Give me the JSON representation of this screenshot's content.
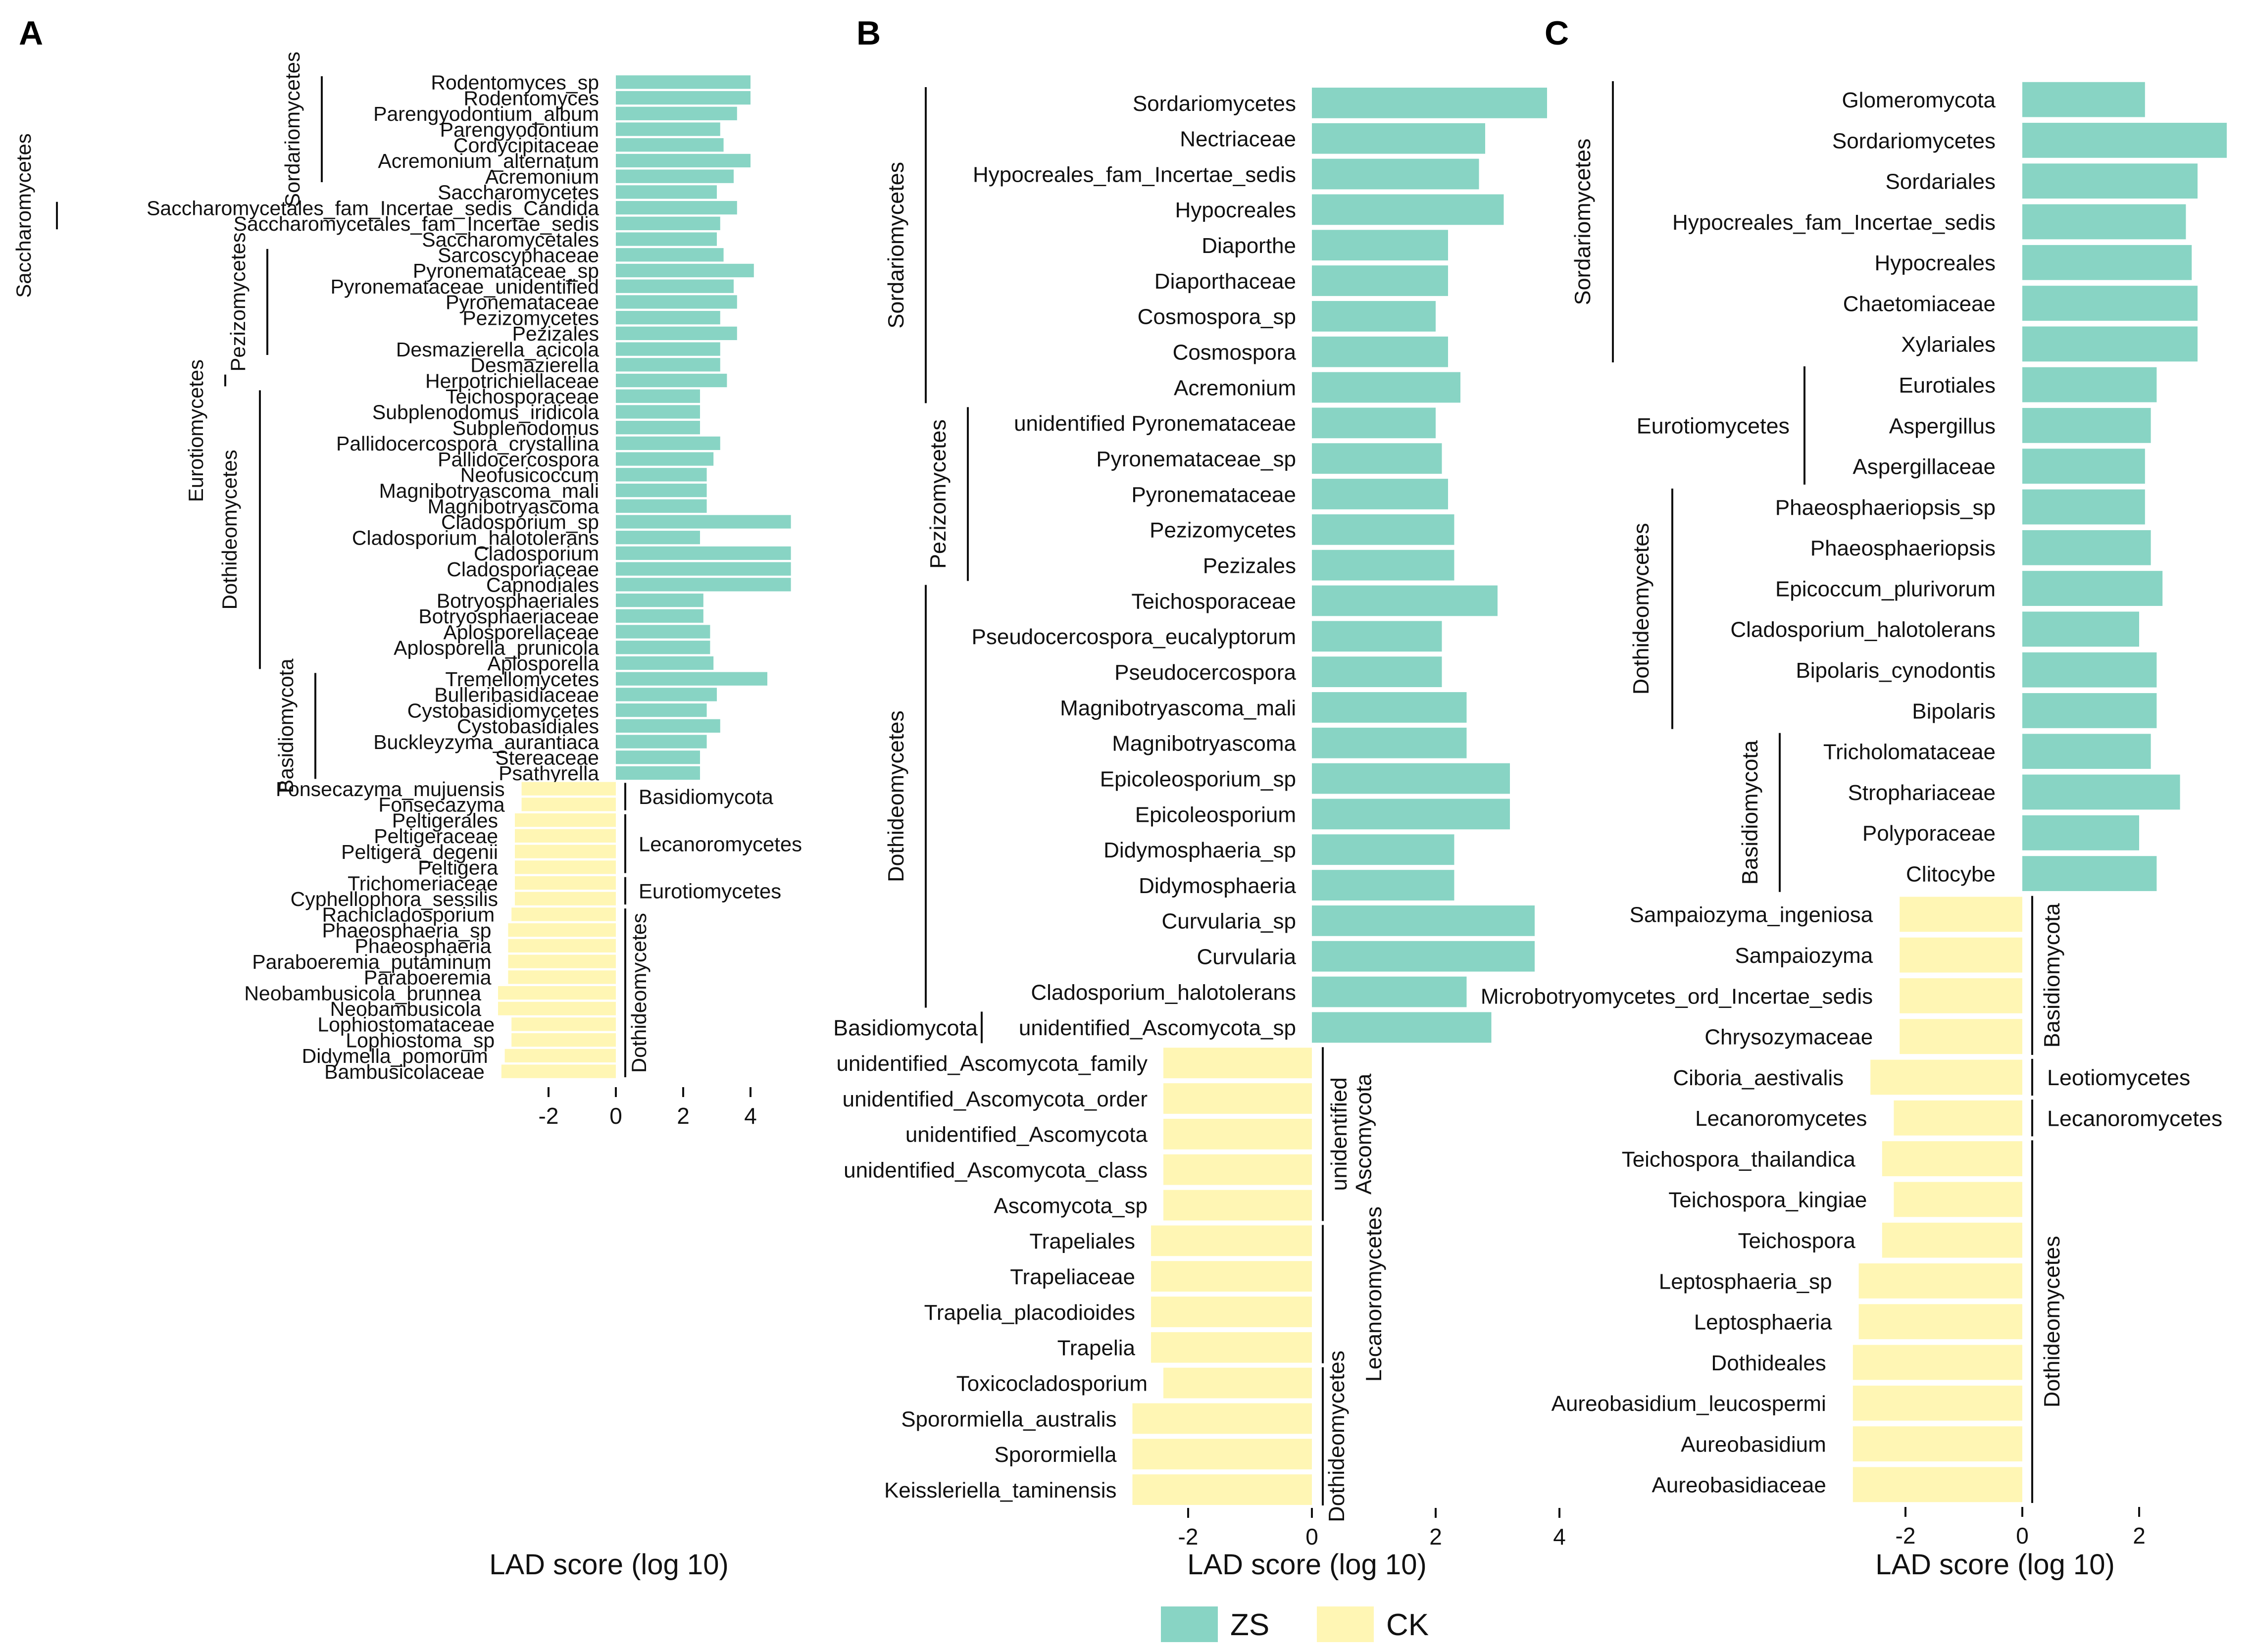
{
  "colors": {
    "ZS": "#88d4c4",
    "CK": "#fff6b4",
    "line": "#111111",
    "text": "#111111"
  },
  "legend": [
    {
      "name": "ZS",
      "color": "#88d4c4"
    },
    {
      "name": "CK",
      "color": "#fff6b4"
    }
  ],
  "chart_data": [
    {
      "panel": "A",
      "type": "bar",
      "orientation": "horizontal",
      "xlabel": "LAD score (log 10)",
      "xticks": [
        -2,
        0,
        2,
        4
      ],
      "xlim": [
        -4,
        6
      ],
      "bars": [
        {
          "label": "Rodentomyces_sp",
          "value": 4.0,
          "group": "ZS"
        },
        {
          "label": "Rodentomyces",
          "value": 4.0,
          "group": "ZS"
        },
        {
          "label": "Parengyodontium_album",
          "value": 3.6,
          "group": "ZS"
        },
        {
          "label": "Parengyodontium",
          "value": 3.1,
          "group": "ZS"
        },
        {
          "label": "Cordycipitaceae",
          "value": 3.2,
          "group": "ZS"
        },
        {
          "label": "Acremonium_alternatum",
          "value": 4.0,
          "group": "ZS"
        },
        {
          "label": "Acremonium",
          "value": 3.5,
          "group": "ZS"
        },
        {
          "label": "Saccharomycetes",
          "value": 3.0,
          "group": "ZS"
        },
        {
          "label": "Saccharomycetales_fam_Incertae_sedis_Candida",
          "value": 3.6,
          "group": "ZS"
        },
        {
          "label": "Saccharomycetales_fam_Incertae_sedis",
          "value": 3.1,
          "group": "ZS"
        },
        {
          "label": "Saccharomycetales",
          "value": 3.0,
          "group": "ZS"
        },
        {
          "label": "Sarcoscyphaceae",
          "value": 3.2,
          "group": "ZS"
        },
        {
          "label": "Pyronemataceae_sp",
          "value": 4.1,
          "group": "ZS"
        },
        {
          "label": "Pyronemataceae_unidentified",
          "value": 3.5,
          "group": "ZS"
        },
        {
          "label": "Pyronemataceae",
          "value": 3.6,
          "group": "ZS"
        },
        {
          "label": "Pezizomycetes",
          "value": 3.1,
          "group": "ZS"
        },
        {
          "label": "Pezizales",
          "value": 3.6,
          "group": "ZS"
        },
        {
          "label": "Desmazierella_acicola",
          "value": 3.1,
          "group": "ZS"
        },
        {
          "label": "Desmazierella",
          "value": 3.1,
          "group": "ZS"
        },
        {
          "label": "Herpotrichiellaceae",
          "value": 3.3,
          "group": "ZS"
        },
        {
          "label": "Teichosporaceae",
          "value": 2.5,
          "group": "ZS"
        },
        {
          "label": "Subplenodomus_iridicola",
          "value": 2.5,
          "group": "ZS"
        },
        {
          "label": "Subplenodomus",
          "value": 2.5,
          "group": "ZS"
        },
        {
          "label": "Pallidocercospora_crystallina",
          "value": 3.1,
          "group": "ZS"
        },
        {
          "label": "Pallidocercospora",
          "value": 2.9,
          "group": "ZS"
        },
        {
          "label": "Neofusicoccum",
          "value": 2.7,
          "group": "ZS"
        },
        {
          "label": "Magnibotryascoma_mali",
          "value": 2.7,
          "group": "ZS"
        },
        {
          "label": "Magnibotryascoma",
          "value": 2.7,
          "group": "ZS"
        },
        {
          "label": "Cladosporium_sp",
          "value": 5.2,
          "group": "ZS"
        },
        {
          "label": "Cladosporium_halotolerans",
          "value": 2.5,
          "group": "ZS"
        },
        {
          "label": "Cladosporium",
          "value": 5.2,
          "group": "ZS"
        },
        {
          "label": "Cladosporiaceae",
          "value": 5.2,
          "group": "ZS"
        },
        {
          "label": "Capnodiales",
          "value": 5.2,
          "group": "ZS"
        },
        {
          "label": "Botryosphaeriales",
          "value": 2.6,
          "group": "ZS"
        },
        {
          "label": "Botryosphaeriaceae",
          "value": 2.6,
          "group": "ZS"
        },
        {
          "label": "Aplosporellaceae",
          "value": 2.8,
          "group": "ZS"
        },
        {
          "label": "Aplosporella_prunicola",
          "value": 2.8,
          "group": "ZS"
        },
        {
          "label": "Aplosporella",
          "value": 2.9,
          "group": "ZS"
        },
        {
          "label": "Tremellomycetes",
          "value": 4.5,
          "group": "ZS"
        },
        {
          "label": "Bulleribasidiaceae",
          "value": 3.0,
          "group": "ZS"
        },
        {
          "label": "Cystobasidiomycetes",
          "value": 2.7,
          "group": "ZS"
        },
        {
          "label": "Cystobasidiales",
          "value": 3.1,
          "group": "ZS"
        },
        {
          "label": "Buckleyzyma_aurantiaca",
          "value": 2.7,
          "group": "ZS"
        },
        {
          "label": "Stereaceae",
          "value": 2.5,
          "group": "ZS"
        },
        {
          "label": "Psathyrella",
          "value": 2.5,
          "group": "ZS"
        },
        {
          "label": "Fonsecazyma_mujuensis",
          "value": -2.8,
          "group": "CK"
        },
        {
          "label": "Fonsecazyma",
          "value": -2.8,
          "group": "CK"
        },
        {
          "label": "Peltigerales",
          "value": -3.0,
          "group": "CK"
        },
        {
          "label": "Peltigeraceae",
          "value": -3.0,
          "group": "CK"
        },
        {
          "label": "Peltigera_degenii",
          "value": -3.0,
          "group": "CK"
        },
        {
          "label": "Peltigera",
          "value": -3.0,
          "group": "CK"
        },
        {
          "label": "Trichomeriaceae",
          "value": -3.0,
          "group": "CK"
        },
        {
          "label": "Cyphellophora_sessilis",
          "value": -3.0,
          "group": "CK"
        },
        {
          "label": "Rachicladosporium",
          "value": -3.1,
          "group": "CK"
        },
        {
          "label": "Phaeosphaeria_sp",
          "value": -3.2,
          "group": "CK"
        },
        {
          "label": "Phaeosphaeria",
          "value": -3.2,
          "group": "CK"
        },
        {
          "label": "Paraboeremia_putaminum",
          "value": -3.2,
          "group": "CK"
        },
        {
          "label": "Paraboeremia",
          "value": -3.2,
          "group": "CK"
        },
        {
          "label": "Neobambusicola_brunnea",
          "value": -3.5,
          "group": "CK"
        },
        {
          "label": "Neobambusicola",
          "value": -3.5,
          "group": "CK"
        },
        {
          "label": "Lophiostomataceae",
          "value": -3.1,
          "group": "CK"
        },
        {
          "label": "Lophiostoma_sp",
          "value": -3.1,
          "group": "CK"
        },
        {
          "label": "Didymella_pomorum",
          "value": -3.3,
          "group": "CK"
        },
        {
          "label": "Bambusicolaceae",
          "value": -3.4,
          "group": "CK"
        }
      ],
      "group_annotations": [
        {
          "label": "Sordariomycetes",
          "from": 0,
          "to": 6
        },
        {
          "label": "Saccharomycetes",
          "from": 8,
          "to": 9
        },
        {
          "label": "Pezizomycetes",
          "from": 11,
          "to": 17
        },
        {
          "label": "Eurotiomycetes",
          "from": 19,
          "to": 19
        },
        {
          "label": "Dothideomycetes",
          "from": 20,
          "to": 37
        },
        {
          "label": "Basidiomycota",
          "from": 38,
          "to": 44
        },
        {
          "label": "Basidiomycota",
          "from": 45,
          "to": 46
        },
        {
          "label": "Lecanoromycetes",
          "from": 47,
          "to": 50
        },
        {
          "label": "Eurotiomycetes",
          "from": 51,
          "to": 52
        },
        {
          "label": "Dothideomycetes",
          "from": 53,
          "to": 63
        }
      ]
    },
    {
      "panel": "B",
      "type": "bar",
      "orientation": "horizontal",
      "xlabel": "LAD score (log 10)",
      "xticks": [
        -2,
        0,
        2,
        4
      ],
      "xlim": [
        -3.2,
        4.2
      ],
      "bars": [
        {
          "label": "Sordariomycetes",
          "value": 3.8,
          "group": "ZS"
        },
        {
          "label": "Nectriaceae",
          "value": 2.8,
          "group": "ZS"
        },
        {
          "label": "Hypocreales_fam_Incertae_sedis",
          "value": 2.7,
          "group": "ZS"
        },
        {
          "label": "Hypocreales",
          "value": 3.1,
          "group": "ZS"
        },
        {
          "label": "Diaporthe",
          "value": 2.2,
          "group": "ZS"
        },
        {
          "label": "Diaporthaceae",
          "value": 2.2,
          "group": "ZS"
        },
        {
          "label": "Cosmospora_sp",
          "value": 2.0,
          "group": "ZS"
        },
        {
          "label": "Cosmospora",
          "value": 2.2,
          "group": "ZS"
        },
        {
          "label": "Acremonium",
          "value": 2.4,
          "group": "ZS"
        },
        {
          "label": "unidentified Pyronemataceae",
          "value": 2.0,
          "group": "ZS"
        },
        {
          "label": "Pyronemataceae_sp",
          "value": 2.1,
          "group": "ZS"
        },
        {
          "label": "Pyronemataceae",
          "value": 2.2,
          "group": "ZS"
        },
        {
          "label": "Pezizomycetes",
          "value": 2.3,
          "group": "ZS"
        },
        {
          "label": "Pezizales",
          "value": 2.3,
          "group": "ZS"
        },
        {
          "label": "Teichosporaceae",
          "value": 3.0,
          "group": "ZS"
        },
        {
          "label": "Pseudocercospora_eucalyptorum",
          "value": 2.1,
          "group": "ZS"
        },
        {
          "label": "Pseudocercospora",
          "value": 2.1,
          "group": "ZS"
        },
        {
          "label": "Magnibotryascoma_mali",
          "value": 2.5,
          "group": "ZS"
        },
        {
          "label": "Magnibotryascoma",
          "value": 2.5,
          "group": "ZS"
        },
        {
          "label": "Epicoleosporium_sp",
          "value": 3.2,
          "group": "ZS"
        },
        {
          "label": "Epicoleosporium",
          "value": 3.2,
          "group": "ZS"
        },
        {
          "label": "Didymosphaeria_sp",
          "value": 2.3,
          "group": "ZS"
        },
        {
          "label": "Didymosphaeria",
          "value": 2.3,
          "group": "ZS"
        },
        {
          "label": "Curvularia_sp",
          "value": 3.6,
          "group": "ZS"
        },
        {
          "label": "Curvularia",
          "value": 3.6,
          "group": "ZS"
        },
        {
          "label": "Cladosporium_halotolerans",
          "value": 2.5,
          "group": "ZS"
        },
        {
          "label": "unidentified_Ascomycota_sp",
          "value": 2.9,
          "group": "ZS"
        },
        {
          "label": "unidentified_Ascomycota_family",
          "value": -2.4,
          "group": "CK"
        },
        {
          "label": "unidentified_Ascomycota_order",
          "value": -2.4,
          "group": "CK"
        },
        {
          "label": "unidentified_Ascomycota",
          "value": -2.4,
          "group": "CK"
        },
        {
          "label": "unidentified_Ascomycota_class",
          "value": -2.4,
          "group": "CK"
        },
        {
          "label": "Ascomycota_sp",
          "value": -2.4,
          "group": "CK"
        },
        {
          "label": "Trapeliales",
          "value": -2.6,
          "group": "CK"
        },
        {
          "label": "Trapeliaceae",
          "value": -2.6,
          "group": "CK"
        },
        {
          "label": "Trapelia_placodioides",
          "value": -2.6,
          "group": "CK"
        },
        {
          "label": "Trapelia",
          "value": -2.6,
          "group": "CK"
        },
        {
          "label": "Toxicocladosporium",
          "value": -2.4,
          "group": "CK"
        },
        {
          "label": "Sporormiella_australis",
          "value": -2.9,
          "group": "CK"
        },
        {
          "label": "Sporormiella",
          "value": -2.9,
          "group": "CK"
        },
        {
          "label": "Keissleriella_taminensis",
          "value": -2.9,
          "group": "CK"
        }
      ],
      "group_annotations": [
        {
          "label": "Sordariomycetes",
          "from": 0,
          "to": 8
        },
        {
          "label": "Pezizomycetes",
          "from": 9,
          "to": 13
        },
        {
          "label": "Dothideomycetes",
          "from": 14,
          "to": 25
        },
        {
          "label": "Basidiomycota",
          "from": 26,
          "to": 26
        },
        {
          "label": "unidentified Ascomycota",
          "from": 27,
          "to": 31
        },
        {
          "label": "Lecanoromycetes",
          "from": 32,
          "to": 35
        },
        {
          "label": "Dothideomycetes",
          "from": 36,
          "to": 39
        }
      ]
    },
    {
      "panel": "C",
      "type": "bar",
      "orientation": "horizontal",
      "xlabel": "LAD score (log 10)",
      "xticks": [
        -2,
        0,
        2
      ],
      "xlim": [
        -3.5,
        3.2
      ],
      "bars": [
        {
          "label": "Glomeromycota",
          "value": 2.1,
          "group": "ZS"
        },
        {
          "label": "Sordariomycetes",
          "value": 3.5,
          "group": "ZS"
        },
        {
          "label": "Sordariales",
          "value": 3.0,
          "group": "ZS"
        },
        {
          "label": "Hypocreales_fam_Incertae_sedis",
          "value": 2.8,
          "group": "ZS"
        },
        {
          "label": "Hypocreales",
          "value": 2.9,
          "group": "ZS"
        },
        {
          "label": "Chaetomiaceae",
          "value": 3.0,
          "group": "ZS"
        },
        {
          "label": "Xylariales",
          "value": 3.0,
          "group": "ZS"
        },
        {
          "label": "Eurotiales",
          "value": 2.3,
          "group": "ZS"
        },
        {
          "label": "Aspergillus",
          "value": 2.2,
          "group": "ZS"
        },
        {
          "label": "Aspergillaceae",
          "value": 2.1,
          "group": "ZS"
        },
        {
          "label": "Phaeosphaeriopsis_sp",
          "value": 2.1,
          "group": "ZS"
        },
        {
          "label": "Phaeosphaeriopsis",
          "value": 2.2,
          "group": "ZS"
        },
        {
          "label": "Epicoccum_plurivorum",
          "value": 2.4,
          "group": "ZS"
        },
        {
          "label": "Cladosporium_halotolerans",
          "value": 2.0,
          "group": "ZS"
        },
        {
          "label": "Bipolaris_cynodontis",
          "value": 2.3,
          "group": "ZS"
        },
        {
          "label": "Bipolaris",
          "value": 2.3,
          "group": "ZS"
        },
        {
          "label": "Tricholomataceae",
          "value": 2.2,
          "group": "ZS"
        },
        {
          "label": "Strophariaceae",
          "value": 2.7,
          "group": "ZS"
        },
        {
          "label": "Polyporaceae",
          "value": 2.0,
          "group": "ZS"
        },
        {
          "label": "Clitocybe",
          "value": 2.3,
          "group": "ZS"
        },
        {
          "label": "Sampaiozyma_ingeniosa",
          "value": -2.1,
          "group": "CK"
        },
        {
          "label": "Sampaiozyma",
          "value": -2.1,
          "group": "CK"
        },
        {
          "label": "Microbotryomycetes_ord_Incertae_sedis",
          "value": -2.1,
          "group": "CK"
        },
        {
          "label": "Chrysozymaceae",
          "value": -2.1,
          "group": "CK"
        },
        {
          "label": "Ciboria_aestivalis",
          "value": -2.6,
          "group": "CK"
        },
        {
          "label": "Lecanoromycetes",
          "value": -2.2,
          "group": "CK"
        },
        {
          "label": "Teichospora_thailandica",
          "value": -2.4,
          "group": "CK"
        },
        {
          "label": "Teichospora_kingiae",
          "value": -2.2,
          "group": "CK"
        },
        {
          "label": "Teichospora",
          "value": -2.4,
          "group": "CK"
        },
        {
          "label": "Leptosphaeria_sp",
          "value": -2.8,
          "group": "CK"
        },
        {
          "label": "Leptosphaeria",
          "value": -2.8,
          "group": "CK"
        },
        {
          "label": "Dothideales",
          "value": -2.9,
          "group": "CK"
        },
        {
          "label": "Aureobasidium_leucospermi",
          "value": -2.9,
          "group": "CK"
        },
        {
          "label": "Aureobasidium",
          "value": -2.9,
          "group": "CK"
        },
        {
          "label": "Aureobasidiaceae",
          "value": -2.9,
          "group": "CK"
        }
      ],
      "group_annotations": [
        {
          "label": "Sordariomycetes",
          "from": 0,
          "to": 6
        },
        {
          "label": "Eurotiomycetes",
          "from": 7,
          "to": 9
        },
        {
          "label": "Dothideomycetes",
          "from": 10,
          "to": 15
        },
        {
          "label": "Basidiomycota",
          "from": 16,
          "to": 19
        },
        {
          "label": "Basidiomycota",
          "from": 20,
          "to": 23
        },
        {
          "label": "Leotiomycetes",
          "from": 24,
          "to": 24
        },
        {
          "label": "Lecanoromycetes",
          "from": 25,
          "to": 25
        },
        {
          "label": "Dothideomycetes",
          "from": 26,
          "to": 34
        }
      ]
    }
  ]
}
